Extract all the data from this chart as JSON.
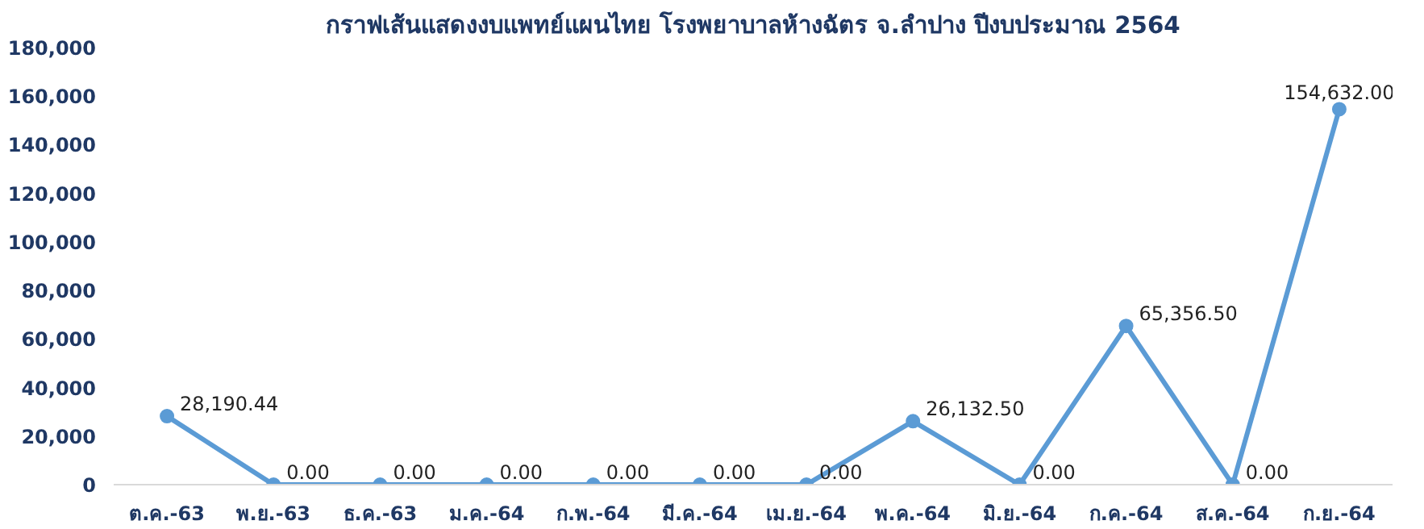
{
  "chart_data": {
    "type": "line",
    "title": "กราฟเส้นแสดงงบแพทย์แผนไทย โรงพยาบาลห้างฉัตร จ.ลำปาง ปีงบประมาณ 2564",
    "categories": [
      "ต.ค.-63",
      "พ.ย.-63",
      "ธ.ค.-63",
      "ม.ค.-64",
      "ก.พ.-64",
      "มี.ค.-64",
      "เม.ย.-64",
      "พ.ค.-64",
      "มิ.ย.-64",
      "ก.ค.-64",
      "ส.ค.-64",
      "ก.ย.-64"
    ],
    "values": [
      28190.44,
      0,
      0,
      0,
      0,
      0,
      0,
      26132.5,
      0,
      65356.5,
      0,
      154632
    ],
    "value_labels": [
      "28,190.44",
      "0.00",
      "0.00",
      "0.00",
      "0.00",
      "0.00",
      "0.00",
      "26,132.50",
      "0.00",
      "65,356.50",
      "0.00",
      "154,632.00"
    ],
    "color": "#5b9bd5",
    "marker": "circle",
    "line_style": "solid",
    "grid": false,
    "ylim": [
      0,
      180000
    ],
    "yticks": [
      {
        "value": 0,
        "label": "0"
      },
      {
        "value": 20000,
        "label": "20,000"
      },
      {
        "value": 40000,
        "label": "40,000"
      },
      {
        "value": 60000,
        "label": "60,000"
      },
      {
        "value": 80000,
        "label": "80,000"
      },
      {
        "value": 100000,
        "label": "100,000"
      },
      {
        "value": 120000,
        "label": "120,000"
      },
      {
        "value": 140000,
        "label": "140,000"
      },
      {
        "value": 160000,
        "label": "160,000"
      },
      {
        "value": 180000,
        "label": "180,000"
      }
    ]
  }
}
